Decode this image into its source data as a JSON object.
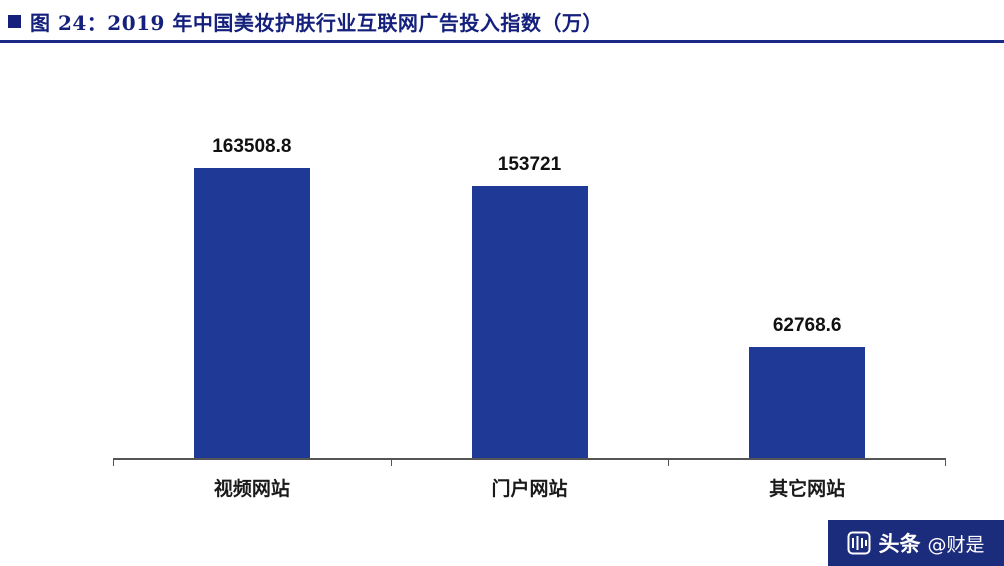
{
  "header": {
    "title": "图 24：2019 年中国美妆护肤行业互联网广告投入指数（万）"
  },
  "chart_data": {
    "type": "bar",
    "title": "2019 年中国美妆护肤行业互联网广告投入指数（万）",
    "categories": [
      "视频网站",
      "门户网站",
      "其它网站"
    ],
    "values": [
      163508.8,
      153721,
      62768.6
    ],
    "value_labels": [
      "163508.8",
      "153721",
      "62768.6"
    ],
    "ylim": [
      0,
      180000
    ],
    "xlabel": "",
    "ylabel": "",
    "grid": false,
    "legend": "none",
    "bar_color": "#1e3a96"
  },
  "watermark": {
    "brand": "头条",
    "handle": "@财是"
  },
  "colors": {
    "accent": "#14207c",
    "rule": "#1a2a86",
    "bar": "#1e3a96",
    "axis": "#555555",
    "watermark_bg": "#1c2c7d"
  }
}
